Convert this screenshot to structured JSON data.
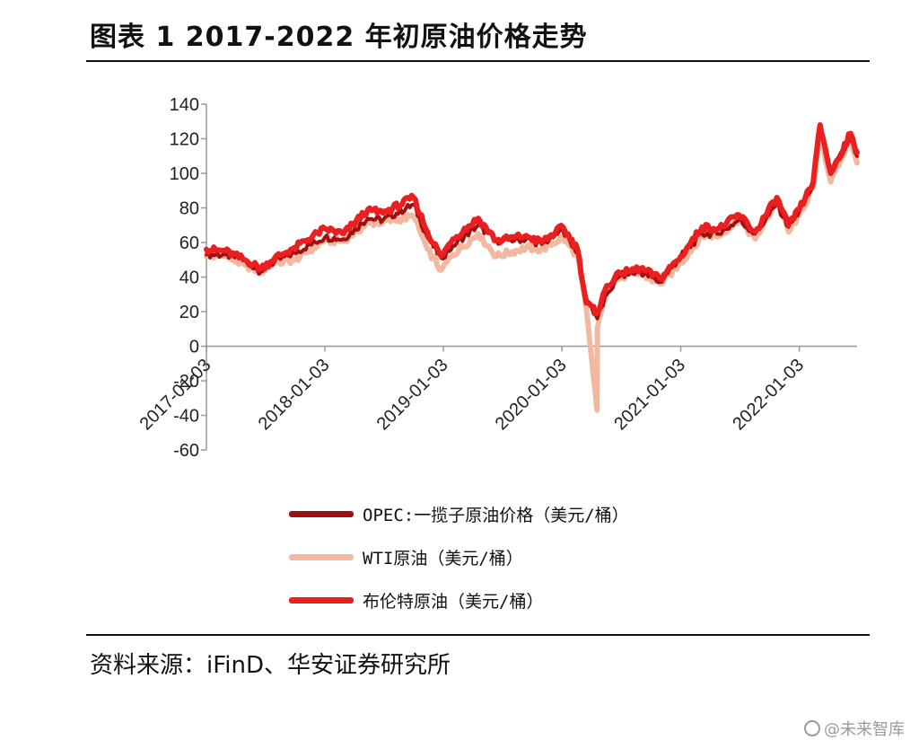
{
  "header": {
    "title": "图表 1 2017-2022 年初原油价格走势"
  },
  "footer": {
    "source": "资料来源：iFinD、华安证券研究所"
  },
  "watermark": {
    "text": "@未来智库",
    "icon": "camera-icon"
  },
  "chart_data": {
    "type": "line",
    "ylim": [
      -60,
      140
    ],
    "yticks": [
      140,
      120,
      100,
      80,
      60,
      40,
      20,
      0,
      -20,
      -40,
      -60
    ],
    "x_range": [
      "2017-01-03",
      "2022-06-30"
    ],
    "xticks": [
      "2017-01-03",
      "2018-01-03",
      "2019-01-03",
      "2020-01-03",
      "2021-01-03",
      "2022-01-03"
    ],
    "grid": false,
    "legend_position": "bottom",
    "series": [
      {
        "name": "OPEC:一揽子原油价格（美元/桶）",
        "color": "#a01010",
        "points": [
          [
            "2017-01-03",
            53
          ],
          [
            "2017-03-01",
            53
          ],
          [
            "2017-05-01",
            50
          ],
          [
            "2017-06-20",
            43
          ],
          [
            "2017-08-01",
            49
          ],
          [
            "2017-10-01",
            54
          ],
          [
            "2018-01-03",
            63
          ],
          [
            "2018-03-01",
            62
          ],
          [
            "2018-05-15",
            74
          ],
          [
            "2018-07-01",
            73
          ],
          [
            "2018-10-03",
            82
          ],
          [
            "2018-11-15",
            63
          ],
          [
            "2018-12-27",
            51
          ],
          [
            "2019-02-01",
            58
          ],
          [
            "2019-04-20",
            70
          ],
          [
            "2019-06-15",
            61
          ],
          [
            "2019-09-15",
            62
          ],
          [
            "2019-11-01",
            59
          ],
          [
            "2020-01-06",
            67
          ],
          [
            "2020-02-20",
            54
          ],
          [
            "2020-03-18",
            28
          ],
          [
            "2020-04-21",
            16
          ],
          [
            "2020-05-20",
            30
          ],
          [
            "2020-07-01",
            41
          ],
          [
            "2020-09-01",
            43
          ],
          [
            "2020-11-01",
            37
          ],
          [
            "2021-01-03",
            52
          ],
          [
            "2021-03-10",
            65
          ],
          [
            "2021-05-01",
            65
          ],
          [
            "2021-07-01",
            73
          ],
          [
            "2021-08-20",
            65
          ],
          [
            "2021-10-26",
            82
          ],
          [
            "2021-12-01",
            69
          ],
          [
            "2022-01-03",
            78
          ],
          [
            "2022-02-15",
            93
          ],
          [
            "2022-03-08",
            127
          ],
          [
            "2022-04-10",
            102
          ],
          [
            "2022-06-10",
            119
          ],
          [
            "2022-06-30",
            110
          ]
        ]
      },
      {
        "name": "WTI原油（美元/桶）",
        "color": "#f2b8a0",
        "points": [
          [
            "2017-01-03",
            52
          ],
          [
            "2017-03-01",
            52
          ],
          [
            "2017-05-01",
            47
          ],
          [
            "2017-06-20",
            43
          ],
          [
            "2017-08-01",
            48
          ],
          [
            "2017-10-01",
            50
          ],
          [
            "2018-01-03",
            61
          ],
          [
            "2018-03-01",
            61
          ],
          [
            "2018-05-15",
            71
          ],
          [
            "2018-07-01",
            72
          ],
          [
            "2018-10-03",
            75
          ],
          [
            "2018-11-15",
            56
          ],
          [
            "2018-12-27",
            44
          ],
          [
            "2019-02-01",
            53
          ],
          [
            "2019-04-20",
            65
          ],
          [
            "2019-06-15",
            52
          ],
          [
            "2019-09-15",
            57
          ],
          [
            "2019-11-01",
            56
          ],
          [
            "2020-01-06",
            63
          ],
          [
            "2020-02-20",
            52
          ],
          [
            "2020-03-18",
            22
          ],
          [
            "2020-04-20",
            -37
          ],
          [
            "2020-04-21",
            10
          ],
          [
            "2020-05-20",
            33
          ],
          [
            "2020-07-01",
            40
          ],
          [
            "2020-09-01",
            42
          ],
          [
            "2020-11-01",
            36
          ],
          [
            "2021-01-03",
            48
          ],
          [
            "2021-03-10",
            64
          ],
          [
            "2021-05-01",
            64
          ],
          [
            "2021-07-01",
            73
          ],
          [
            "2021-08-20",
            62
          ],
          [
            "2021-10-26",
            84
          ],
          [
            "2021-12-01",
            66
          ],
          [
            "2022-01-03",
            76
          ],
          [
            "2022-02-15",
            92
          ],
          [
            "2022-03-08",
            123
          ],
          [
            "2022-04-10",
            95
          ],
          [
            "2022-06-10",
            120
          ],
          [
            "2022-06-30",
            106
          ]
        ]
      },
      {
        "name": "布伦特原油（美元/桶）",
        "color": "#ea1f1f",
        "points": [
          [
            "2017-01-03",
            56
          ],
          [
            "2017-03-01",
            55
          ],
          [
            "2017-05-01",
            50
          ],
          [
            "2017-06-20",
            45
          ],
          [
            "2017-08-01",
            51
          ],
          [
            "2017-10-01",
            57
          ],
          [
            "2018-01-03",
            68
          ],
          [
            "2018-03-01",
            65
          ],
          [
            "2018-05-15",
            79
          ],
          [
            "2018-07-01",
            77
          ],
          [
            "2018-10-03",
            86
          ],
          [
            "2018-11-15",
            66
          ],
          [
            "2018-12-27",
            52
          ],
          [
            "2019-02-01",
            62
          ],
          [
            "2019-04-20",
            74
          ],
          [
            "2019-06-15",
            61
          ],
          [
            "2019-09-15",
            64
          ],
          [
            "2019-11-01",
            60
          ],
          [
            "2020-01-06",
            69
          ],
          [
            "2020-02-20",
            56
          ],
          [
            "2020-03-18",
            25
          ],
          [
            "2020-04-21",
            19
          ],
          [
            "2020-05-20",
            35
          ],
          [
            "2020-07-01",
            42
          ],
          [
            "2020-09-01",
            45
          ],
          [
            "2020-11-01",
            39
          ],
          [
            "2021-01-03",
            52
          ],
          [
            "2021-03-10",
            69
          ],
          [
            "2021-05-01",
            68
          ],
          [
            "2021-07-01",
            76
          ],
          [
            "2021-08-20",
            66
          ],
          [
            "2021-10-26",
            86
          ],
          [
            "2021-12-01",
            70
          ],
          [
            "2022-01-03",
            79
          ],
          [
            "2022-02-15",
            95
          ],
          [
            "2022-03-08",
            128
          ],
          [
            "2022-04-10",
            100
          ],
          [
            "2022-06-10",
            123
          ],
          [
            "2022-06-30",
            112
          ]
        ]
      }
    ]
  }
}
